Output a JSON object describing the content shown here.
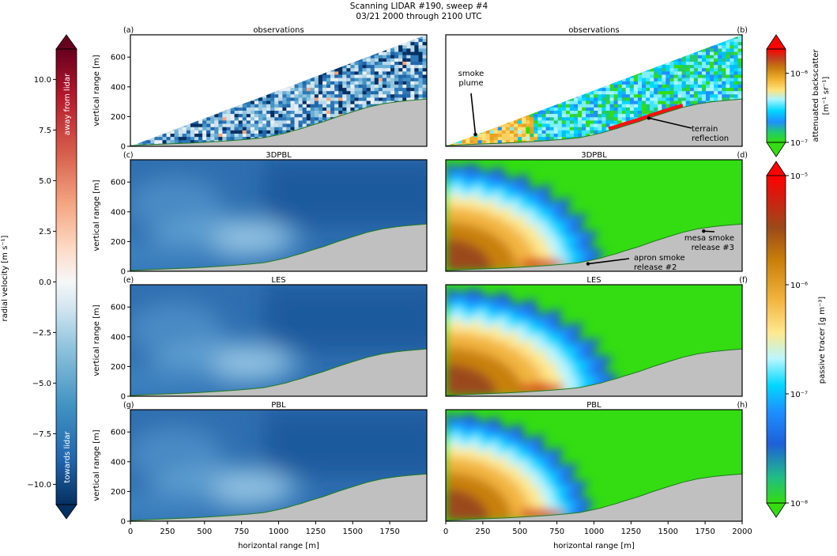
{
  "figure": {
    "title_lines": [
      "Scanning LIDAR #190, sweep #4",
      "03/21 2000 through 2100 UTC"
    ]
  },
  "left_colorbar": {
    "label": "radial velocity [m s⁻¹]",
    "top_text": "away from lidar",
    "bottom_text": "towards lidar",
    "ticks": [
      "10.0",
      "7.5",
      "5.0",
      "2.5",
      "0.0",
      "−2.5",
      "−5.0",
      "−7.5",
      "−10.0"
    ],
    "tick_values": [
      10,
      7.5,
      5,
      2.5,
      0,
      -2.5,
      -5,
      -7.5,
      -10
    ],
    "range": [
      -11,
      11.5
    ],
    "colormap": [
      "#053061",
      "#2166ac",
      "#4393c3",
      "#92c5de",
      "#d1e5f0",
      "#f7f7f7",
      "#fddbc7",
      "#f4a582",
      "#d6604d",
      "#b2182b",
      "#67001f"
    ]
  },
  "right_top_colorbar": {
    "label_line1": "attenuated backscatter",
    "label_line2": "[m⁻¹ sr⁻¹]",
    "ticks": [
      "10⁻⁶",
      "10⁻⁷"
    ],
    "tick_values": [
      -6,
      -7
    ],
    "range_log10": [
      -7,
      -5.65
    ]
  },
  "right_bottom_colorbar": {
    "label": "passive tracer [g m⁻³]",
    "ticks": [
      "10⁻⁵",
      "10⁻⁶",
      "10⁻⁷",
      "10⁻⁸"
    ],
    "tick_values": [
      -5,
      -6,
      -7,
      -8
    ],
    "range_log10": [
      -8,
      -5
    ]
  },
  "colors": {
    "terrain": "#c0c0c0",
    "terrain_edge": "#1f7a1f",
    "tracer_background": "#33dd11"
  },
  "chart_data": [
    {
      "type": "heatmap",
      "panel_letter": "(a)",
      "title": "observations",
      "variable": "radial velocity",
      "ylabel": "vertical range [m]",
      "xlim": [
        0,
        2000
      ],
      "ylim": [
        0,
        750
      ],
      "yticks": [
        "0",
        "200",
        "400",
        "600"
      ],
      "ytick_values": [
        0,
        200,
        400,
        600
      ],
      "xticks": [],
      "xtick_values": []
    },
    {
      "type": "heatmap",
      "panel_letter": "(b)",
      "title": "observations",
      "variable": "attenuated backscatter",
      "xlim": [
        0,
        2000
      ],
      "ylim": [
        0,
        750
      ],
      "yticks": [],
      "ytick_values": [],
      "xticks": [],
      "xtick_values": [],
      "annotations": [
        {
          "text_lines": [
            "smoke",
            "plume"
          ],
          "target_x": 200,
          "target_y": 80
        },
        {
          "text_lines": [
            "terrain",
            "reflection"
          ],
          "target_x": 1370,
          "target_y": 190
        }
      ]
    },
    {
      "type": "heatmap",
      "panel_letter": "(c)",
      "title": "3DPBL",
      "variable": "radial velocity",
      "ylabel": "vertical range [m]",
      "xlim": [
        0,
        2000
      ],
      "ylim": [
        0,
        750
      ],
      "yticks": [
        "0",
        "200",
        "400",
        "600"
      ],
      "ytick_values": [
        0,
        200,
        400,
        600
      ],
      "xticks": [],
      "xtick_values": []
    },
    {
      "type": "heatmap",
      "panel_letter": "(d)",
      "title": "3DPBL",
      "variable": "passive tracer",
      "xlim": [
        0,
        2000
      ],
      "ylim": [
        0,
        750
      ],
      "yticks": [],
      "ytick_values": [],
      "xticks": [],
      "xtick_values": [],
      "annotations": [
        {
          "text_lines": [
            "mesa smoke",
            "release #3"
          ],
          "target_x": 1740,
          "target_y": 270
        },
        {
          "text_lines": [
            "apron smoke",
            "release #2"
          ],
          "target_x": 960,
          "target_y": 50
        }
      ]
    },
    {
      "type": "heatmap",
      "panel_letter": "(e)",
      "title": "LES",
      "variable": "radial velocity",
      "ylabel": "vertical range [m]",
      "xlim": [
        0,
        2000
      ],
      "ylim": [
        0,
        750
      ],
      "yticks": [
        "0",
        "200",
        "400",
        "600"
      ],
      "ytick_values": [
        0,
        200,
        400,
        600
      ],
      "xticks": [],
      "xtick_values": []
    },
    {
      "type": "heatmap",
      "panel_letter": "(f)",
      "title": "LES",
      "variable": "passive tracer",
      "xlim": [
        0,
        2000
      ],
      "ylim": [
        0,
        750
      ],
      "yticks": [],
      "ytick_values": [],
      "xticks": [],
      "xtick_values": []
    },
    {
      "type": "heatmap",
      "panel_letter": "(g)",
      "title": "PBL",
      "variable": "radial velocity",
      "ylabel": "vertical range [m]",
      "xlabel": "horizontal range [m]",
      "xlim": [
        0,
        2000
      ],
      "ylim": [
        0,
        750
      ],
      "yticks": [
        "0",
        "200",
        "400",
        "600"
      ],
      "ytick_values": [
        0,
        200,
        400,
        600
      ],
      "xticks": [
        "0",
        "250",
        "500",
        "750",
        "1000",
        "1250",
        "1500",
        "1750"
      ],
      "xtick_values": [
        0,
        250,
        500,
        750,
        1000,
        1250,
        1500,
        1750
      ]
    },
    {
      "type": "heatmap",
      "panel_letter": "(h)",
      "title": "PBL",
      "variable": "passive tracer",
      "xlabel": "horizontal range [m]",
      "xlim": [
        0,
        2000
      ],
      "ylim": [
        0,
        750
      ],
      "yticks": [],
      "ytick_values": [],
      "xticks": [
        "0",
        "250",
        "500",
        "750",
        "1000",
        "1250",
        "1500",
        "1750",
        "2000"
      ],
      "xtick_values": [
        0,
        250,
        500,
        750,
        1000,
        1250,
        1500,
        1750,
        2000
      ]
    }
  ],
  "terrain_profile": {
    "x": [
      0,
      100,
      200,
      300,
      400,
      500,
      600,
      700,
      800,
      900,
      950,
      1000,
      1050,
      1100,
      1150,
      1200,
      1300,
      1400,
      1500,
      1600,
      1700,
      1800,
      1900,
      2000
    ],
    "y": [
      5,
      10,
      14,
      18,
      22,
      27,
      33,
      40,
      48,
      58,
      68,
      78,
      90,
      105,
      118,
      135,
      165,
      200,
      232,
      262,
      285,
      300,
      310,
      318
    ]
  }
}
